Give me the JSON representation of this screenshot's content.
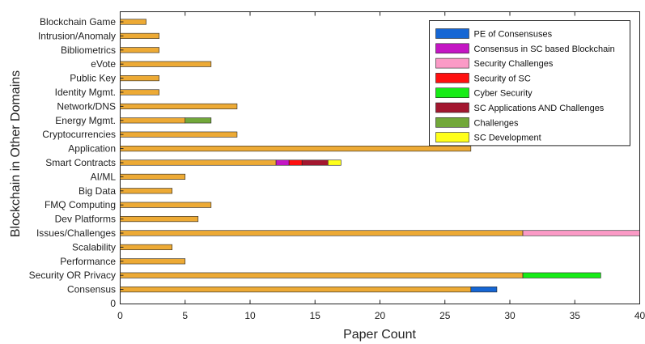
{
  "chart_data": {
    "type": "bar",
    "orientation": "horizontal",
    "stacked": true,
    "title": "",
    "xlabel": "Paper Count",
    "ylabel": "Blockchain in Other Domains",
    "xlim": [
      0,
      40
    ],
    "x_ticks": [
      0,
      5,
      10,
      15,
      20,
      25,
      30,
      35,
      40
    ],
    "y_zero_label": "0",
    "grid": false,
    "legend_position": "top-right",
    "base_color": "#EDAA35",
    "categories": [
      "Consensus",
      "Security OR Privacy",
      "Performance",
      "Scalability",
      "Issues/Challenges",
      "Dev Platforms",
      "FMQ Computing",
      "Big Data",
      "AI/ML",
      "Smart Contracts",
      "Application",
      "Cryptocurrencies",
      "Energy Mgmt.",
      "Network/DNS",
      "Identity Mgmt.",
      "Public Key",
      "eVote",
      "Bibliometrics",
      "Intrusion/Anomaly",
      "Blockchain Game"
    ],
    "values": [
      27,
      31,
      5,
      4,
      31,
      6,
      7,
      4,
      5,
      12,
      27,
      9,
      5,
      9,
      3,
      3,
      7,
      3,
      3,
      2
    ],
    "segments": [
      {
        "category": "Consensus",
        "series": "PE of Consensuses",
        "start": 27,
        "value": 2
      },
      {
        "category": "Security OR Privacy",
        "series": "Cyber Security",
        "start": 31,
        "value": 6
      },
      {
        "category": "Issues/Challenges",
        "series": "Security Challenges",
        "start": 31,
        "value": 9
      },
      {
        "category": "Smart Contracts",
        "series": "Consensus in SC based Blockchain",
        "start": 12,
        "value": 1
      },
      {
        "category": "Smart Contracts",
        "series": "Security of SC",
        "start": 13,
        "value": 1
      },
      {
        "category": "Smart Contracts",
        "series": "SC Applications AND Challenges",
        "start": 14,
        "value": 2
      },
      {
        "category": "Smart Contracts",
        "series": "SC Development",
        "start": 16,
        "value": 1
      },
      {
        "category": "Energy Mgmt.",
        "series": "Challenges",
        "start": 5,
        "value": 2
      }
    ],
    "legend": [
      {
        "name": "PE of Consensuses",
        "color": "#1566D4"
      },
      {
        "name": "Consensus in SC based Blockchain",
        "color": "#C416C4"
      },
      {
        "name": "Security Challenges",
        "color": "#FB9AC6"
      },
      {
        "name": "Security of SC",
        "color": "#FF1010"
      },
      {
        "name": "Cyber Security",
        "color": "#16EC16"
      },
      {
        "name": "SC Applications AND Challenges",
        "color": "#A3172F"
      },
      {
        "name": "Challenges",
        "color": "#72A83A"
      },
      {
        "name": "SC Development",
        "color": "#FFFF1A"
      }
    ]
  }
}
